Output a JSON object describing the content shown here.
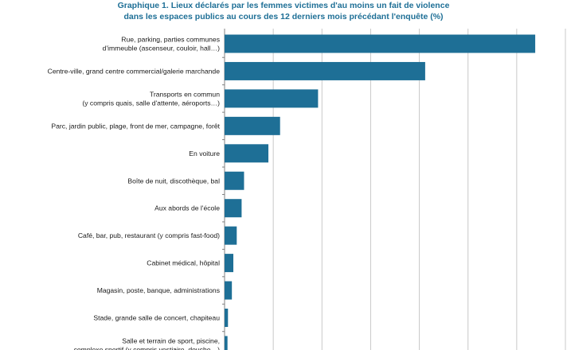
{
  "chart_data": {
    "type": "bar",
    "orientation": "horizontal",
    "title": "Graphique 1. Lieux déclarés par les femmes victimes d'au moins un fait de violence",
    "subtitle": "dans les espaces publics au cours des 12 derniers mois précédant l'enquête (%)",
    "xlabel": "",
    "ylabel": "",
    "grid": true,
    "bar_color": "#1e6f96",
    "categories": [
      [
        "Rue, parking, parties communes",
        "d'immeuble (ascenseur, couloir, hall…)"
      ],
      [
        "Centre-ville, grand centre commercial/galerie marchande"
      ],
      [
        "Transports en commun",
        "(y compris quais, salle d'attente, aéroports…)"
      ],
      [
        "Parc, jardin public, plage, front de mer, campagne, forêt"
      ],
      [
        "En voiture"
      ],
      [
        "Boîte de nuit, discothèque, bal"
      ],
      [
        "Aux abords de l'école"
      ],
      [
        "Café, bar, pub, restaurant (y compris fast-food)"
      ],
      [
        "Cabinet médical, hôpital"
      ],
      [
        "Magasin, poste, banque, administrations"
      ],
      [
        "Stade, grande salle de concert, chapiteau"
      ],
      [
        "Salle et terrain de sport, piscine,",
        "complexe sportif (y compris vestiaire, douche…)"
      ]
    ],
    "values": [
      63.8,
      41.2,
      19.2,
      11.4,
      9.0,
      4.0,
      3.5,
      2.5,
      1.8,
      1.5,
      0.7,
      0.6
    ],
    "xlim": [
      0,
      70
    ]
  }
}
